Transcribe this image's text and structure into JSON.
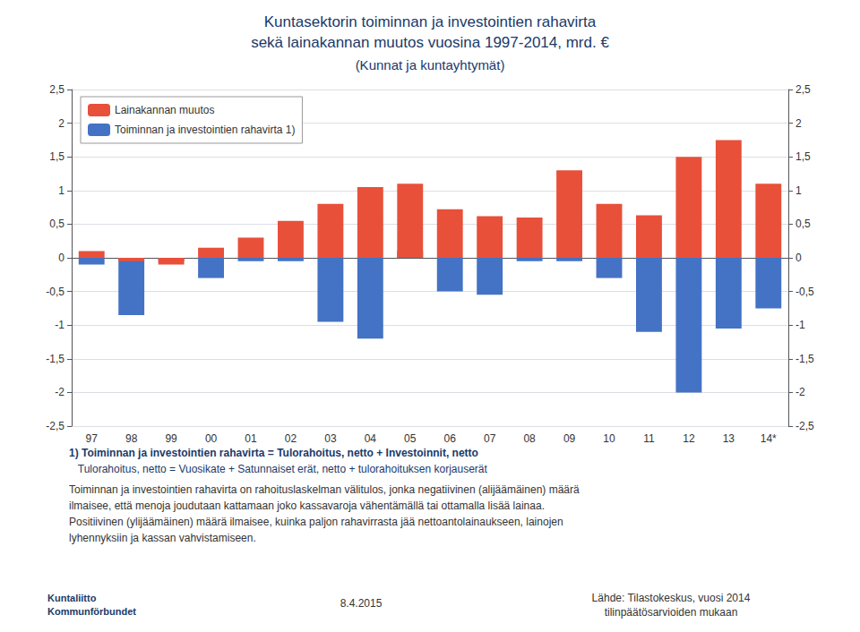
{
  "chart_data": {
    "type": "bar",
    "title": "Kuntasektorin toiminnan ja investointien rahavirta\nsekä lainakannan muutos vuosina 1997-2014, mrd. €",
    "subtitle": "(Kunnat ja kuntayhtymät)",
    "categories": [
      "97",
      "98",
      "99",
      "00",
      "01",
      "02",
      "03",
      "04",
      "05",
      "06",
      "07",
      "08",
      "09",
      "10",
      "11",
      "12",
      "13",
      "14*"
    ],
    "series": [
      {
        "name": "Lainakannan muutos",
        "color": "#E8503A",
        "values": [
          0.1,
          -0.05,
          -0.1,
          0.15,
          0.3,
          0.55,
          0.8,
          1.05,
          1.1,
          0.72,
          0.62,
          0.6,
          1.3,
          0.8,
          0.63,
          1.5,
          1.75,
          1.1
        ]
      },
      {
        "name": "Toiminnan ja investointien rahavirta 1)",
        "color": "#4472C4",
        "values": [
          -0.1,
          -0.85,
          -0.05,
          -0.3,
          -0.05,
          -0.05,
          -0.95,
          -1.2,
          0.1,
          -0.5,
          -0.55,
          -0.05,
          -0.05,
          -0.3,
          -1.1,
          -2.0,
          -1.05,
          -0.75
        ]
      }
    ],
    "ylim": [
      -2.5,
      2.5
    ],
    "yticks": [
      {
        "value": -2.5,
        "label": "-2,5"
      },
      -2,
      {
        "value": -1.5,
        "label": "-1,5"
      },
      -1,
      {
        "value": -0.5,
        "label": "-0,5"
      },
      0,
      {
        "value": 0.5,
        "label": "0,5"
      },
      1,
      {
        "value": 1.5,
        "label": "1,5"
      },
      2,
      {
        "value": 2.5,
        "label": "2,5"
      }
    ],
    "y2lim": [
      -2.5,
      2.5
    ],
    "y2ticks": [
      {
        "value": -2.5,
        "label": "-2,5"
      },
      -2,
      {
        "value": -1.5,
        "label": "-1,5"
      },
      -1,
      {
        "value": -0.5,
        "label": "-0,5"
      },
      0,
      {
        "value": 0.5,
        "label": "0,5"
      },
      1,
      {
        "value": 1.5,
        "label": "1,5"
      },
      2,
      {
        "value": 2.5,
        "label": "2,5"
      }
    ],
    "grid": true,
    "legend": "upper left",
    "annotations": [
      "1) Toiminnan ja investointien rahavirta = Tulorahoitus, netto + Investoinnit, netto",
      "   Tulorahoitus, netto = Vuosikate + Satunnaiset erät, netto + tulorahoituksen korjauserät",
      "Toiminnan ja investointien rahavirta on rahoituslaskelman välitulos, jonka negatiivinen (alijäämäinen) määrä",
      "ilmaisee, että menoja joudutaan kattamaan joko kassavaroja vähentämällä tai ottamalla lisää lainaa.",
      "Positiivinen (ylijäämäinen) määrä ilmaisee, kuinka paljon rahavirrasta jää nettoantolainaukseen, lainojen",
      "lyhennyksiin ja kassan vahvistamiseen.",
      "8.4.2015",
      "Lähde: Tilastokeskus, vuosi 2014\ntilinpäätösarvioiden mukaan",
      "Kuntaliitto\nKommunförbundet"
    ]
  }
}
